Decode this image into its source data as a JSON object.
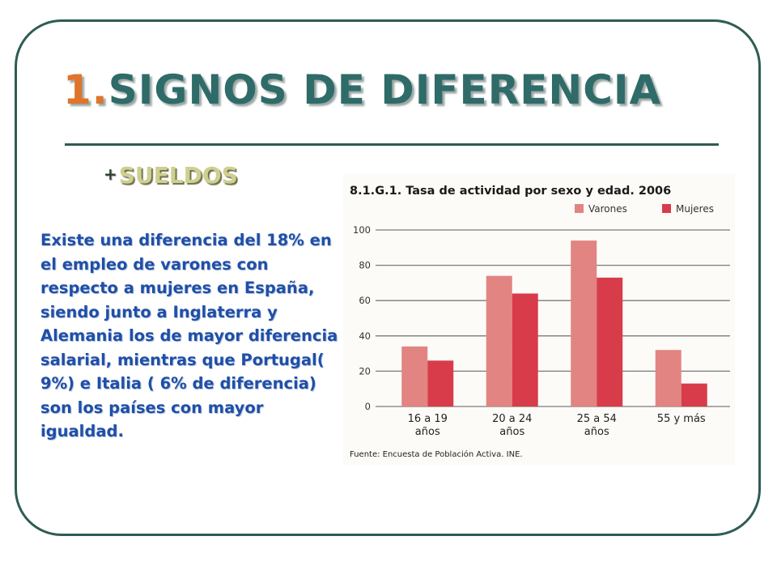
{
  "slide": {
    "title_number": "1.",
    "title_text": "SIGNOS DE DIFERENCIA",
    "bullet_mark": "+",
    "bullet_text": "SUELDOS",
    "body_paragraph": "Existe una diferencia del 18% en el  empleo de varones con respecto a mujeres en España, siendo junto a Inglaterra y Alemania los de mayor diferencia salarial, mientras que Portugal( 9%) e Italia ( 6% de diferencia) son los países con mayor igualdad."
  },
  "colors": {
    "frame": "#2e5c54",
    "title": "#2f6b68",
    "title_number": "#e0742a",
    "body_text": "#1f4fa8",
    "varones": "#e28482",
    "mujeres": "#d83c4a"
  },
  "chart_data": {
    "type": "bar",
    "title": "8.1.G.1. Tasa de actividad por sexo y edad. 2006",
    "categories": [
      [
        "16 a 19",
        "años"
      ],
      [
        "20 a 24",
        "años"
      ],
      [
        "25 a 54",
        "años"
      ],
      [
        "55 y más"
      ]
    ],
    "series": [
      {
        "name": "Varones",
        "values": [
          34,
          74,
          94,
          32
        ]
      },
      {
        "name": "Mujeres",
        "values": [
          26,
          64,
          73,
          13
        ]
      }
    ],
    "yticks": [
      0,
      20,
      40,
      60,
      80,
      100
    ],
    "ylim": [
      0,
      100
    ],
    "xlabel": "",
    "ylabel": "",
    "grid": true,
    "legend_position": "top-right",
    "source": "Fuente: Encuesta de Población Activa. INE."
  }
}
